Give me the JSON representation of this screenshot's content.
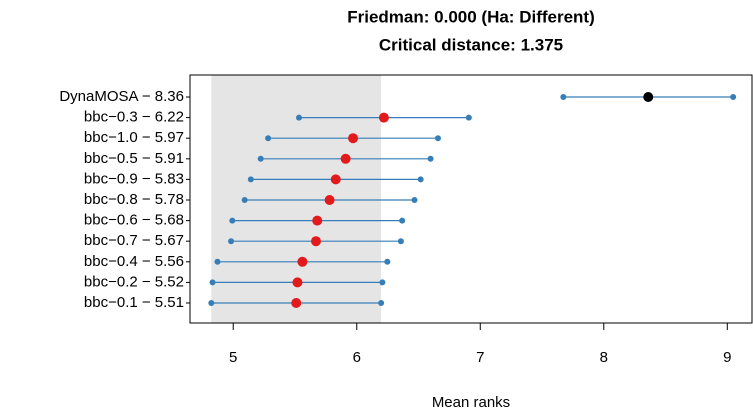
{
  "chart_data": {
    "type": "cd",
    "title": "Friedman: 0.000 (Ha: Different)",
    "subtitle": "Critical distance: 1.375",
    "xlabel": "Mean ranks",
    "categories": [
      "DynaMOSA − 8.36",
      "bbc−0.3 − 6.22",
      "bbc−1.0 − 5.97",
      "bbc−0.5 − 5.91",
      "bbc−0.9 − 5.83",
      "bbc−0.8 − 5.78",
      "bbc−0.6 − 5.68",
      "bbc−0.7 − 5.67",
      "bbc−0.4 − 5.56",
      "bbc−0.2 − 5.52",
      "bbc−0.1 − 5.51"
    ],
    "values": [
      8.36,
      6.22,
      5.97,
      5.91,
      5.83,
      5.78,
      5.68,
      5.67,
      5.56,
      5.52,
      5.51
    ],
    "errors": [
      0.6875,
      0.6875,
      0.6875,
      0.6875,
      0.6875,
      0.6875,
      0.6875,
      0.6875,
      0.6875,
      0.6875,
      0.6875
    ],
    "point_colors": [
      "#000000",
      "#e31a1c",
      "#e31a1c",
      "#e31a1c",
      "#e31a1c",
      "#e31a1c",
      "#e31a1c",
      "#e31a1c",
      "#e31a1c",
      "#e31a1c",
      "#e31a1c"
    ],
    "line_color": "#377eb8",
    "shade_color": "#e5e5e5",
    "xlim": [
      4.65,
      9.2
    ],
    "xticks": [
      5,
      6,
      7,
      8,
      9
    ]
  }
}
